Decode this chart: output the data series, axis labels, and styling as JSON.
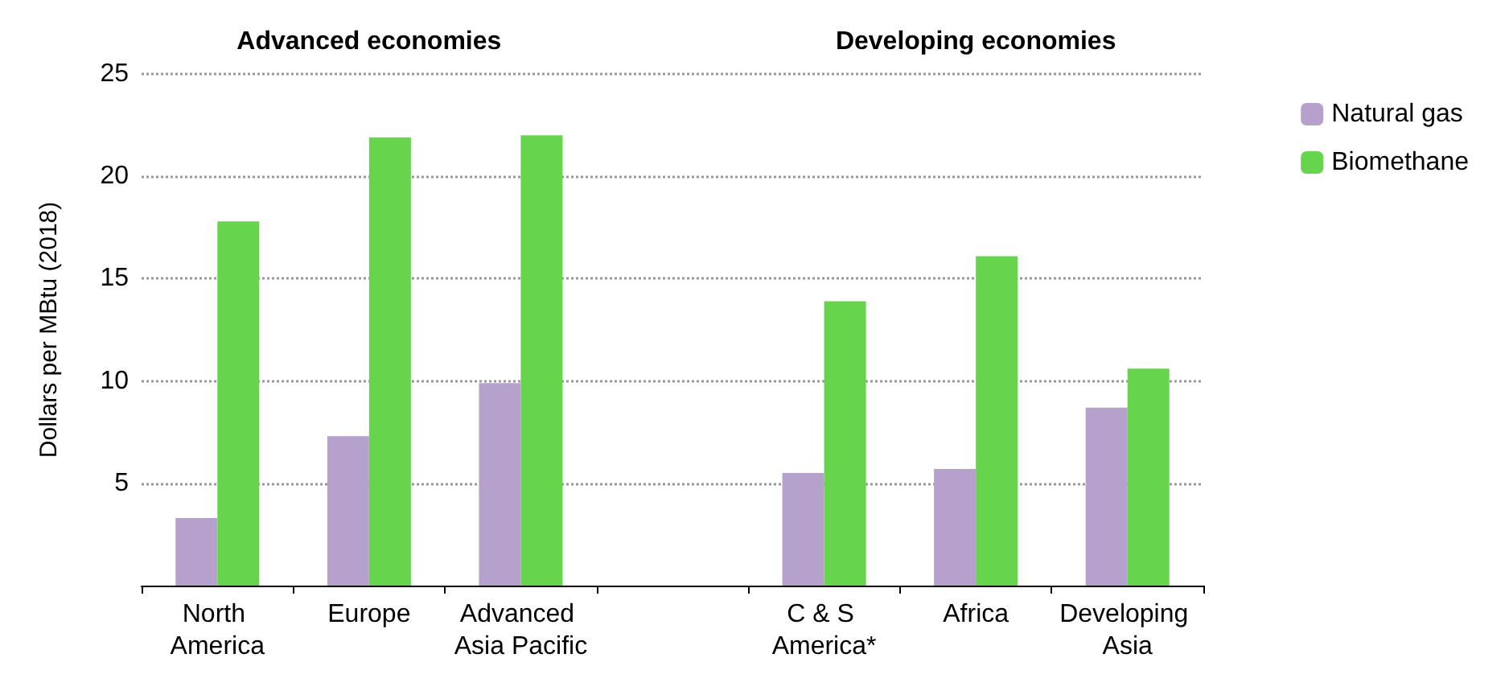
{
  "chart_data": {
    "type": "bar",
    "ylabel": "Dollars per MBtu (2018)",
    "categories": [
      "North America",
      "Europe",
      "Advanced Asia Pacific",
      null,
      "C & S America*",
      "Africa",
      "Developing Asia"
    ],
    "series": [
      {
        "name": "Natural gas",
        "color": "#b6a0cc",
        "values": [
          3.3,
          7.3,
          9.9,
          null,
          5.5,
          5.7,
          8.7
        ]
      },
      {
        "name": "Biomethane",
        "color": "#66d44c",
        "values": [
          17.8,
          21.9,
          22.0,
          null,
          13.9,
          16.1,
          10.6
        ]
      }
    ],
    "ylim": [
      0,
      25
    ],
    "yticks": [
      5,
      10,
      15,
      20,
      25
    ],
    "grid": "y",
    "legend": "right",
    "annotations": [
      "Advanced economies",
      "Developing economies"
    ]
  }
}
